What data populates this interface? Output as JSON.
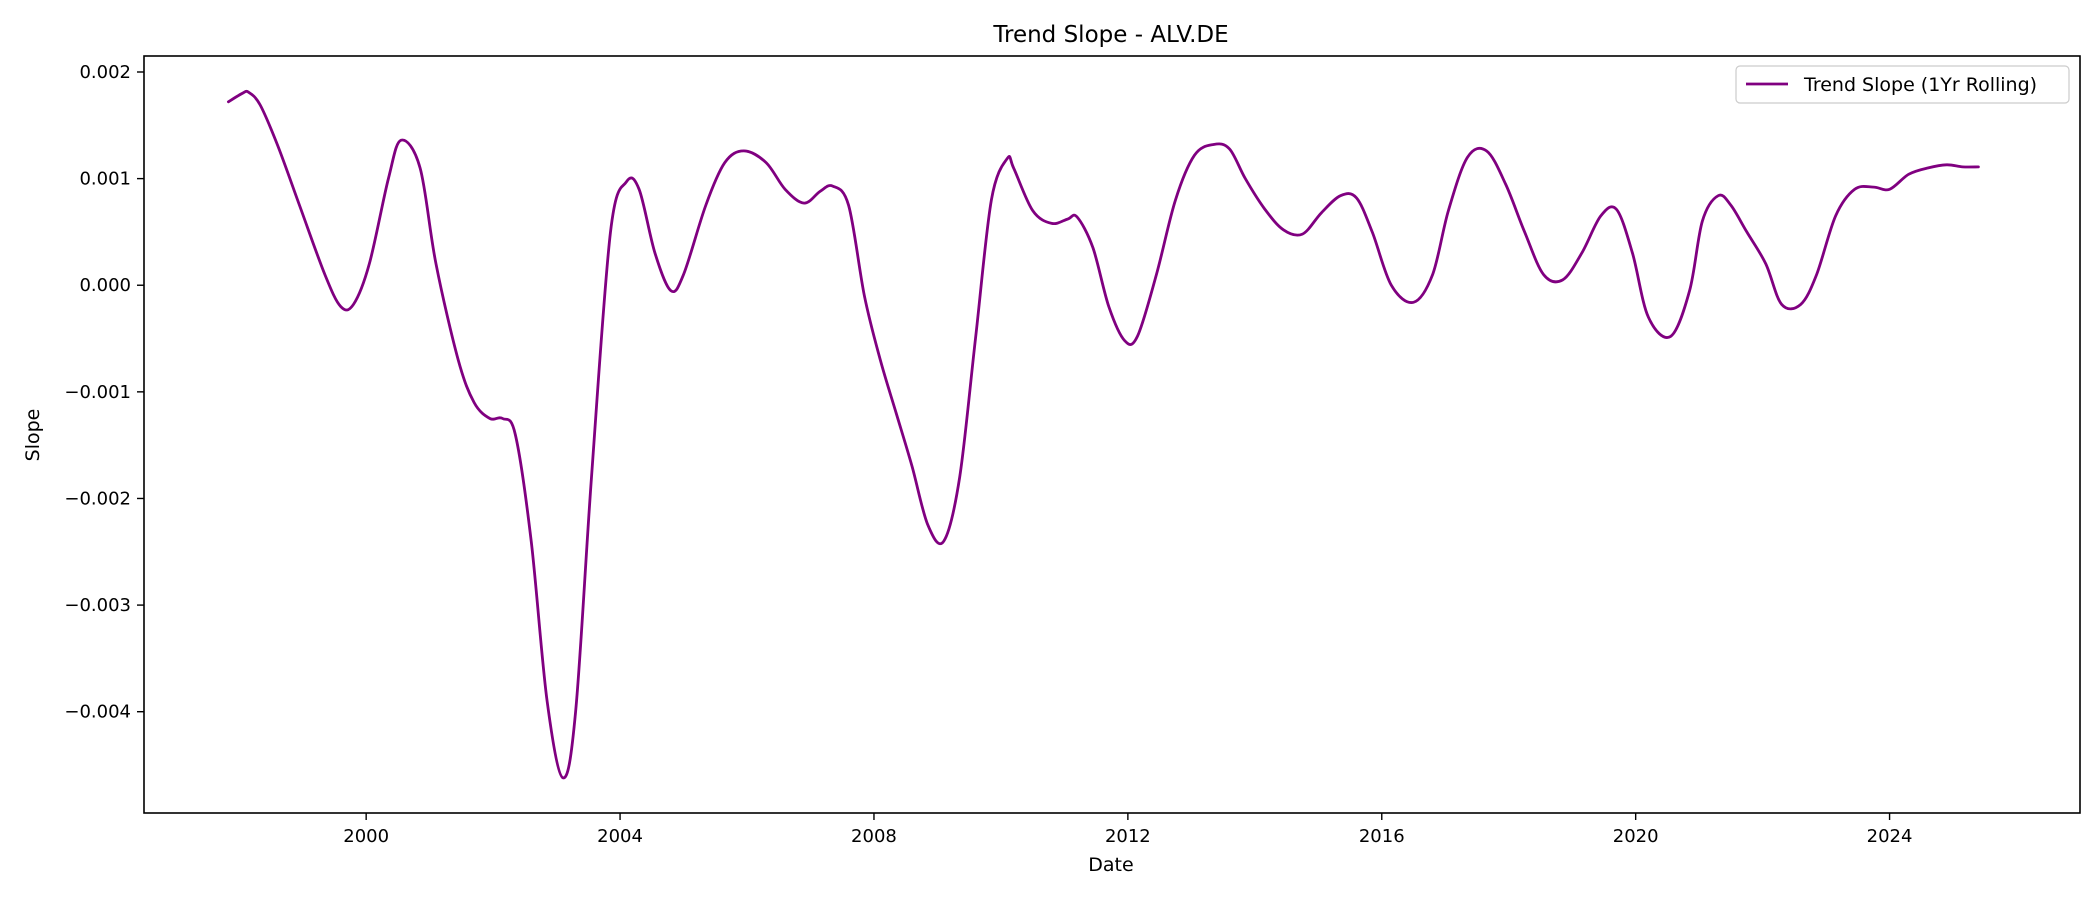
{
  "chart_data": {
    "type": "line",
    "title": "Trend Slope - ALV.DE",
    "xlabel": "Date",
    "ylabel": "Slope",
    "xlim": [
      1996.5,
      2027.0
    ],
    "ylim": [
      -0.00495,
      0.00215
    ],
    "xticks": [
      2000,
      2004,
      2008,
      2012,
      2016,
      2020,
      2024
    ],
    "xtick_labels": [
      "2000",
      "2004",
      "2008",
      "2012",
      "2016",
      "2020",
      "2024"
    ],
    "yticks": [
      0.002,
      0.001,
      0.0,
      -0.001,
      -0.002,
      -0.003,
      -0.004
    ],
    "ytick_labels": [
      "0.002",
      "0.001",
      "0.000",
      "−0.001",
      "−0.002",
      "−0.003",
      "−0.004"
    ],
    "grid": false,
    "legend_position": "top-right",
    "colors": {
      "line": "#800080",
      "axes": "#000000",
      "background": "#ffffff"
    },
    "series": [
      {
        "name": "Trend Slope (1Yr Rolling)",
        "x": [
          1997.83,
          1998.05,
          1998.15,
          1998.33,
          1998.6,
          1998.95,
          1999.35,
          1999.6,
          1999.8,
          2000.05,
          2000.35,
          2000.55,
          2000.85,
          2001.1,
          2001.45,
          2001.7,
          2001.95,
          2002.15,
          2002.35,
          2002.6,
          2002.85,
          2003.1,
          2003.3,
          2003.55,
          2003.85,
          2004.1,
          2004.3,
          2004.55,
          2004.8,
          2005.0,
          2005.35,
          2005.65,
          2005.95,
          2006.3,
          2006.6,
          2006.9,
          2007.15,
          2007.35,
          2007.6,
          2007.85,
          2008.1,
          2008.35,
          2008.6,
          2008.85,
          2009.1,
          2009.35,
          2009.6,
          2009.85,
          2010.1,
          2010.2,
          2010.5,
          2010.8,
          2011.05,
          2011.2,
          2011.45,
          2011.7,
          2011.95,
          2012.15,
          2012.45,
          2012.75,
          2013.05,
          2013.35,
          2013.6,
          2013.85,
          2014.15,
          2014.45,
          2014.75,
          2015.05,
          2015.35,
          2015.6,
          2015.85,
          2016.15,
          2016.5,
          2016.8,
          2017.05,
          2017.35,
          2017.65,
          2017.95,
          2018.25,
          2018.55,
          2018.85,
          2019.15,
          2019.45,
          2019.7,
          2019.95,
          2020.2,
          2020.55,
          2020.85,
          2021.05,
          2021.3,
          2021.5,
          2021.75,
          2022.05,
          2022.3,
          2022.6,
          2022.85,
          2023.15,
          2023.45,
          2023.75,
          2024.0,
          2024.3,
          2024.6,
          2024.9,
          2025.15,
          2025.4
        ],
        "values": [
          0.00172,
          0.0018,
          0.00181,
          0.00169,
          0.00132,
          0.00075,
          0.0001,
          -0.0002,
          -0.00018,
          0.0002,
          0.001,
          0.00136,
          0.0011,
          0.0002,
          -0.0007,
          -0.0011,
          -0.00125,
          -0.00125,
          -0.0014,
          -0.0024,
          -0.0039,
          -0.00462,
          -0.004,
          -0.0018,
          0.0005,
          0.00097,
          0.0009,
          0.0003,
          -5e-05,
          0.0001,
          0.00075,
          0.00115,
          0.00126,
          0.00115,
          0.0009,
          0.00077,
          0.00088,
          0.00093,
          0.00075,
          -0.0001,
          -0.0007,
          -0.0012,
          -0.0017,
          -0.00225,
          -0.0024,
          -0.0018,
          -0.0005,
          0.0008,
          0.00119,
          0.0011,
          0.0007,
          0.00058,
          0.00062,
          0.00064,
          0.00035,
          -0.0002,
          -0.00052,
          -0.00048,
          0.0001,
          0.0008,
          0.00122,
          0.00132,
          0.00128,
          0.001,
          0.00072,
          0.00052,
          0.00048,
          0.00068,
          0.00084,
          0.00082,
          0.0005,
          0.0,
          -0.00016,
          0.0001,
          0.0007,
          0.0012,
          0.00126,
          0.00095,
          0.0005,
          0.0001,
          5e-05,
          0.0003,
          0.00065,
          0.00071,
          0.0003,
          -0.0003,
          -0.00048,
          -5e-05,
          0.0006,
          0.00084,
          0.00075,
          0.0005,
          0.0002,
          -0.00018,
          -0.00018,
          0.0001,
          0.00065,
          0.0009,
          0.00092,
          0.0009,
          0.00104,
          0.0011,
          0.00113,
          0.00111,
          0.00111
        ]
      }
    ]
  }
}
